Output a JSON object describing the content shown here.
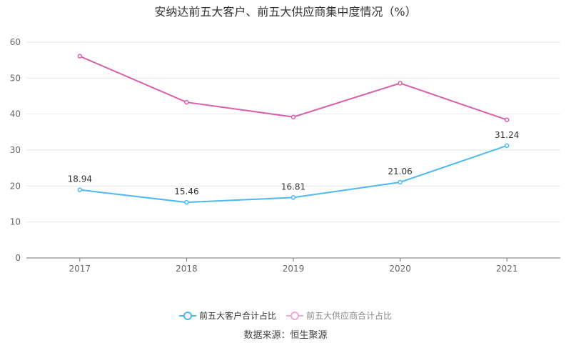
{
  "chart_data": {
    "type": "line",
    "title": "安纳达前五大客户、前五大供应商集中度情况（%）",
    "categories": [
      "2017",
      "2018",
      "2019",
      "2020",
      "2021"
    ],
    "ylim": [
      0,
      60
    ],
    "yticks": [
      "0",
      "10",
      "20",
      "30",
      "40",
      "50",
      "60"
    ],
    "grid": true,
    "legend_placement": "bottom",
    "series": [
      {
        "name": "前五大客户合计占比",
        "color": "#4cb9f4",
        "values": [
          18.94,
          15.46,
          16.81,
          21.06,
          31.24
        ],
        "labels": [
          "18.94",
          "15.46",
          "16.81",
          "21.06",
          "31.24"
        ]
      },
      {
        "name": "前五大供应商合计占比",
        "color": "#d95fae",
        "values": [
          56.1,
          43.3,
          39.2,
          48.6,
          38.4
        ]
      }
    ]
  },
  "source": "数据来源：恒生聚源"
}
